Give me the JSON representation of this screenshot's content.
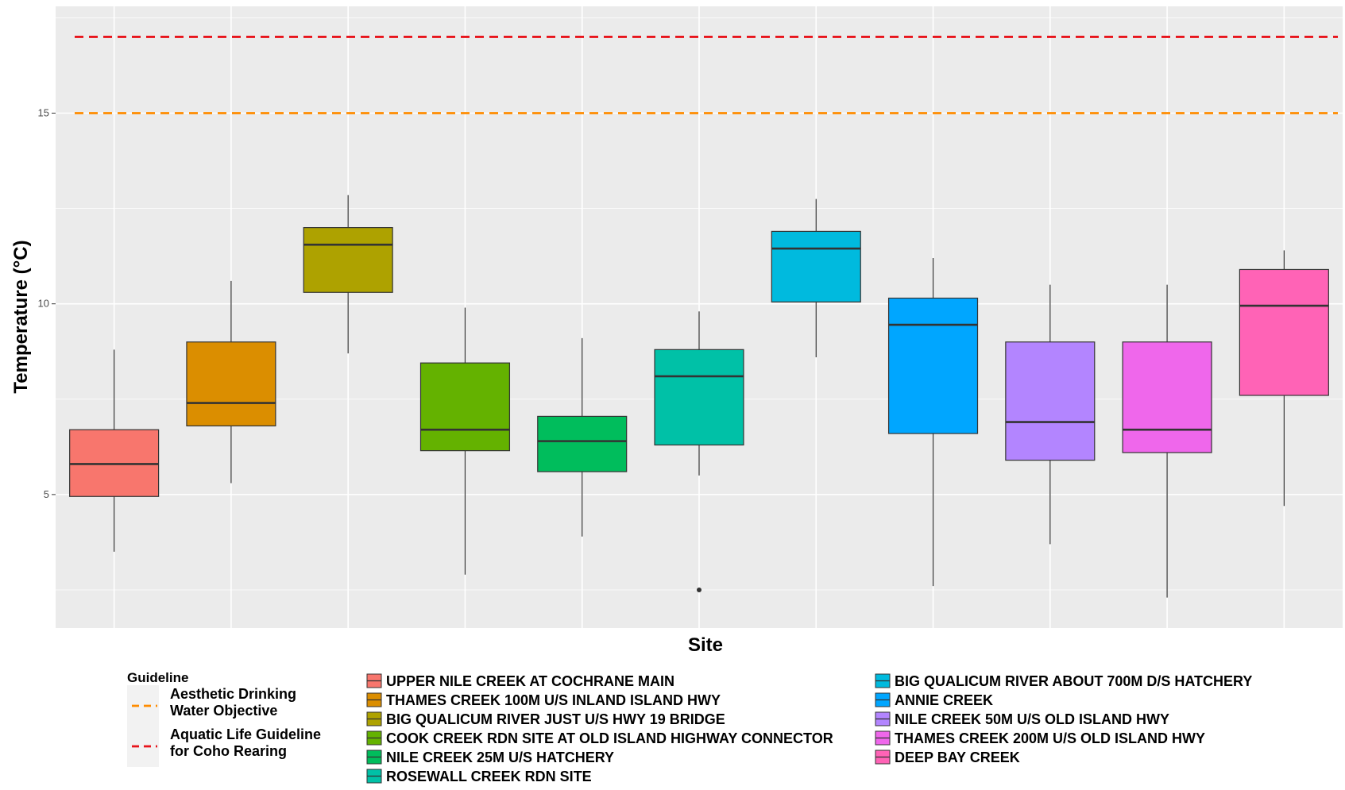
{
  "chart_data": {
    "type": "box",
    "xlabel": "Site",
    "ylabel": "Temperature (°C)",
    "ylim": [
      1.5,
      17.8
    ],
    "yticks": [
      5,
      10,
      15
    ],
    "grid": true,
    "legend_placement": "bottom",
    "sites": [
      {
        "name": "UPPER NILE CREEK AT COCHRANE MAIN",
        "color": "#F8766D",
        "whisker_low": 3.5,
        "q1": 4.95,
        "median": 5.8,
        "q3": 6.7,
        "whisker_high": 8.8,
        "outliers": []
      },
      {
        "name": "THAMES CREEK 100M U/S INLAND ISLAND HWY",
        "color": "#DB8E00",
        "whisker_low": 5.3,
        "q1": 6.8,
        "median": 7.4,
        "q3": 9.0,
        "whisker_high": 10.6,
        "outliers": []
      },
      {
        "name": "BIG QUALICUM RIVER JUST U/S HWY 19 BRIDGE",
        "color": "#AEA200",
        "whisker_low": 8.7,
        "q1": 10.3,
        "median": 11.55,
        "q3": 12.0,
        "whisker_high": 12.85,
        "outliers": []
      },
      {
        "name": "COOK CREEK RDN SITE AT OLD ISLAND HIGHWAY CONNECTOR",
        "color": "#64B200",
        "whisker_low": 2.9,
        "q1": 6.15,
        "median": 6.7,
        "q3": 8.45,
        "whisker_high": 9.9,
        "outliers": []
      },
      {
        "name": "NILE CREEK 25M U/S HATCHERY",
        "color": "#00BD5C",
        "whisker_low": 3.9,
        "q1": 5.6,
        "median": 6.4,
        "q3": 7.05,
        "whisker_high": 9.1,
        "outliers": []
      },
      {
        "name": "ROSEWALL CREEK RDN SITE",
        "color": "#00C1A7",
        "whisker_low": 5.5,
        "q1": 6.3,
        "median": 8.1,
        "q3": 8.8,
        "whisker_high": 9.8,
        "outliers": [
          2.5
        ]
      },
      {
        "name": "BIG QUALICUM RIVER ABOUT 700M D/S HATCHERY",
        "color": "#00BADE",
        "whisker_low": 8.6,
        "q1": 10.05,
        "median": 11.45,
        "q3": 11.9,
        "whisker_high": 12.75,
        "outliers": []
      },
      {
        "name": "ANNIE CREEK",
        "color": "#00A6FF",
        "whisker_low": 2.6,
        "q1": 6.6,
        "median": 9.45,
        "q3": 10.15,
        "whisker_high": 11.2,
        "outliers": []
      },
      {
        "name": "NILE CREEK 50M U/S OLD ISLAND HWY",
        "color": "#B385FF",
        "whisker_low": 3.7,
        "q1": 5.9,
        "median": 6.9,
        "q3": 9.0,
        "whisker_high": 10.5,
        "outliers": []
      },
      {
        "name": "THAMES CREEK 200M U/S OLD ISLAND HWY",
        "color": "#EF67EB",
        "whisker_low": 2.3,
        "q1": 6.1,
        "median": 6.7,
        "q3": 9.0,
        "whisker_high": 10.5,
        "outliers": []
      },
      {
        "name": "DEEP BAY CREEK",
        "color": "#FF63B6",
        "whisker_low": 4.7,
        "q1": 7.6,
        "median": 9.95,
        "q3": 10.9,
        "whisker_high": 11.4,
        "outliers": []
      }
    ],
    "guidelines": [
      {
        "name": "Aesthetic Drinking Water Objective",
        "value": 15,
        "color": "#FF8C00"
      },
      {
        "name": "Aquatic Life Guideline for Coho Rearing",
        "value": 17,
        "color": "#E8141B"
      }
    ]
  },
  "legend": {
    "guideline_title": "Guideline",
    "guideline_labels": [
      [
        "Aesthetic Drinking",
        " Water Objective"
      ],
      [
        "Aquatic Life Guideline",
        " for Coho Rearing"
      ]
    ]
  }
}
